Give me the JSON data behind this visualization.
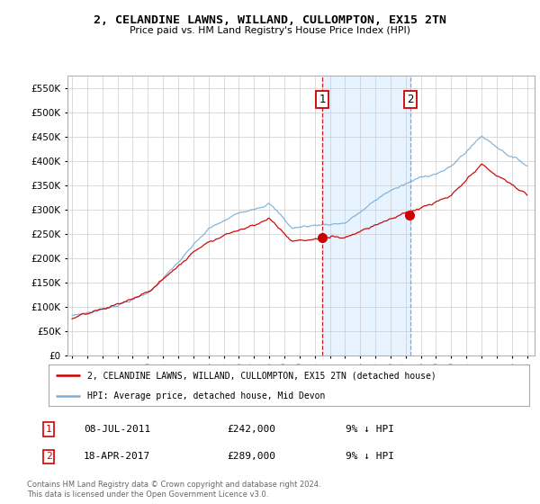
{
  "title": "2, CELANDINE LAWNS, WILLAND, CULLOMPTON, EX15 2TN",
  "subtitle": "Price paid vs. HM Land Registry's House Price Index (HPI)",
  "sale1_date": "08-JUL-2011",
  "sale1_price": 242000,
  "sale1_pct": "9% ↓ HPI",
  "sale2_date": "18-APR-2017",
  "sale2_price": 289000,
  "sale2_pct": "9% ↓ HPI",
  "legend_line1": "2, CELANDINE LAWNS, WILLAND, CULLOMPTON, EX15 2TN (detached house)",
  "legend_line2": "HPI: Average price, detached house, Mid Devon",
  "footer": "Contains HM Land Registry data © Crown copyright and database right 2024.\nThis data is licensed under the Open Government Licence v3.0.",
  "line_color_property": "#cc0000",
  "line_color_hpi": "#7aaed6",
  "plot_bg": "#ffffff",
  "shade_color": "#ddeeff",
  "ylim": [
    0,
    575000
  ],
  "yticks": [
    0,
    50000,
    100000,
    150000,
    200000,
    250000,
    300000,
    350000,
    400000,
    450000,
    500000,
    550000
  ],
  "start_year": 1995,
  "end_year": 2025,
  "sale1_year": 2011.52,
  "sale2_year": 2017.29,
  "vline1_color": "#cc0000",
  "vline2_color": "#8899bb"
}
